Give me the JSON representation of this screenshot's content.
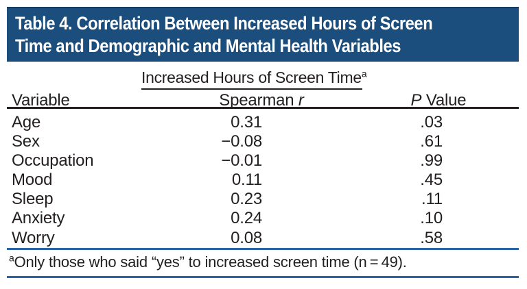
{
  "colors": {
    "header-bg": "#1b4e7d",
    "header-border": "#143a5e",
    "header-text": "#ffffff",
    "text": "#231f20",
    "rule-dark": "#231f20",
    "rule-blue": "#2766a6"
  },
  "title": {
    "line1": "Table 4. Correlation Between Increased Hours of Screen",
    "line2": "Time and Demographic and Mental Health Variables"
  },
  "table": {
    "spanner": {
      "label": "Increased Hours of Screen Time",
      "superscript": "a"
    },
    "columns": {
      "variable": "Variable",
      "spearman_prefix": "Spearman ",
      "spearman_italic": "r",
      "p_italic": "P",
      "p_suffix": " Value"
    },
    "rows": [
      {
        "variable": "Age",
        "spearman_r": "0.31",
        "p_value": ".03"
      },
      {
        "variable": "Sex",
        "spearman_r": "−0.08",
        "p_value": ".61"
      },
      {
        "variable": "Occupation",
        "spearman_r": "−0.01",
        "p_value": ".99"
      },
      {
        "variable": "Mood",
        "spearman_r": "0.11",
        "p_value": ".45"
      },
      {
        "variable": "Sleep",
        "spearman_r": "0.23",
        "p_value": ".11"
      },
      {
        "variable": "Anxiety",
        "spearman_r": "0.24",
        "p_value": ".10"
      },
      {
        "variable": "Worry",
        "spearman_r": "0.08",
        "p_value": ".58"
      }
    ],
    "footnote": {
      "marker": "a",
      "text": "Only those who said “yes” to increased screen time (n = 49)."
    }
  }
}
